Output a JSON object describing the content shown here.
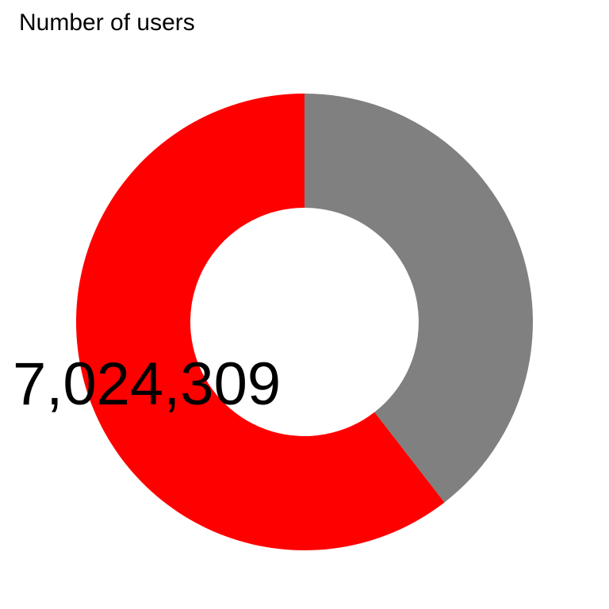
{
  "chart_data": {
    "type": "pie",
    "title": "Number of users",
    "donut": true,
    "slices": [
      {
        "value": 0.395,
        "color": "#808080"
      },
      {
        "value": 0.605,
        "color": "#FF0000"
      }
    ],
    "label": "7,024,309"
  }
}
